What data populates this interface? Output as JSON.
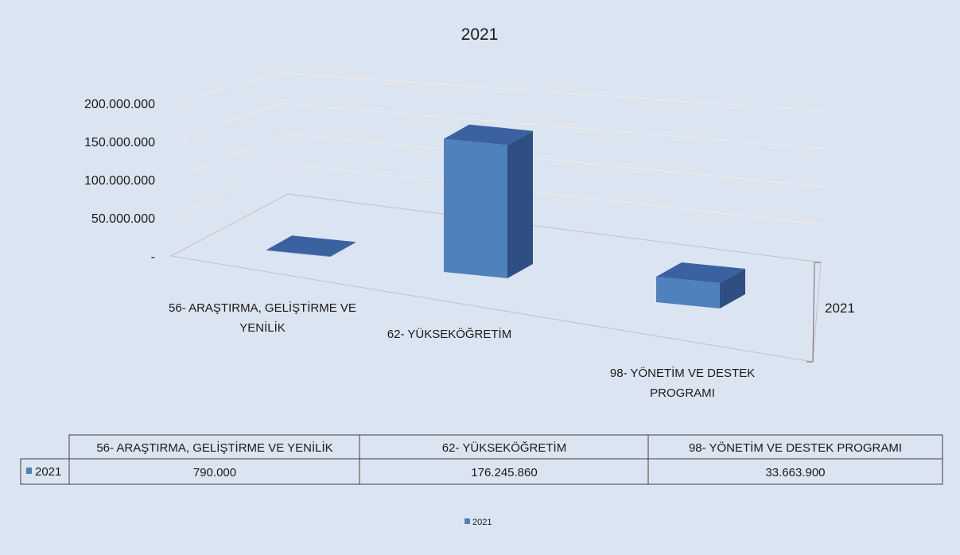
{
  "chart_data": {
    "type": "bar",
    "title": "2021",
    "categories": [
      "56- ARAŞTIRMA, GELİŞTİRME VE YENİLİK",
      "62- YÜKSEKÖĞRETİM",
      "98- YÖNETİM VE DESTEK PROGRAMI"
    ],
    "category_labels": [
      [
        "56- ARAŞTIRMA, GELİŞTİRME VE",
        "YENİLİK"
      ],
      [
        "62- YÜKSEKÖĞRETİM"
      ],
      [
        "98- YÖNETİM VE DESTEK",
        "PROGRAMI"
      ]
    ],
    "series": [
      {
        "name": "2021",
        "values": [
          790000,
          176245860,
          33663900
        ],
        "display": [
          "790.000",
          "176.245.860",
          "33.663.900"
        ]
      }
    ],
    "yticks": [
      "-",
      "50.000.000",
      "100.000.000",
      "150.000.000",
      "200.000.000"
    ],
    "ylim": [
      0,
      200000000
    ],
    "depth_axis_label": "2021",
    "legend": {
      "label": "2021",
      "placement": "bottom"
    },
    "data_table": true,
    "grid": true,
    "colors": {
      "bar_front": "#4f81bd",
      "bar_top": "#3a62a0",
      "bar_side": "#2f4f82",
      "background": "#dbe5f1",
      "grid": "#f0e9e3"
    }
  }
}
